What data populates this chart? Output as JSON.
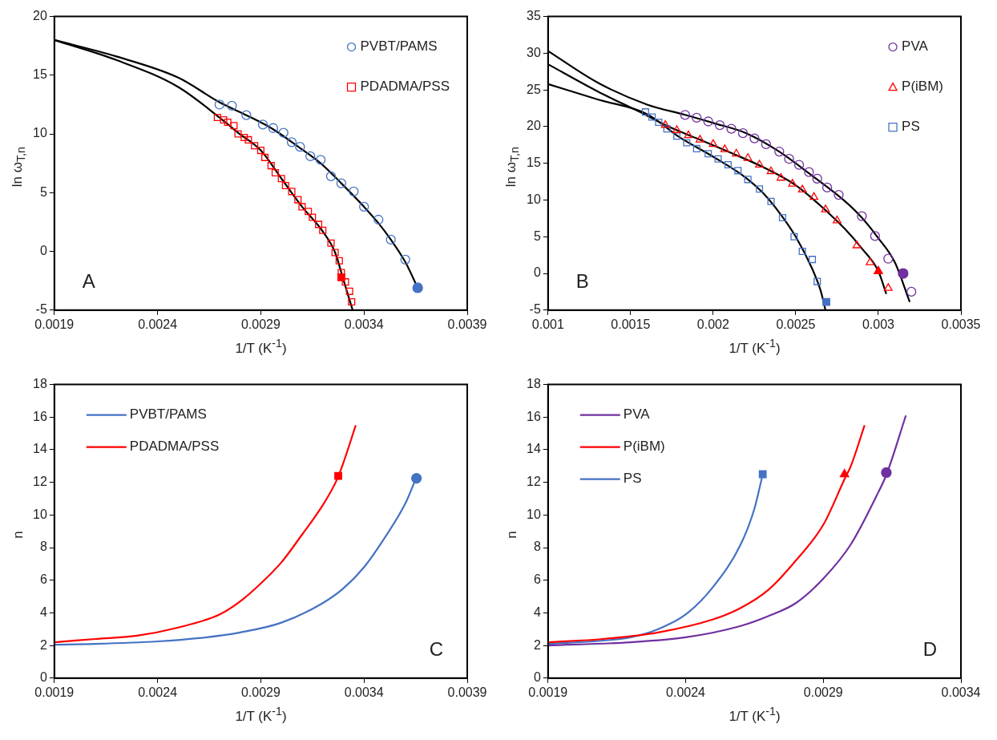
{
  "chart_data": [
    {
      "type": "scatter",
      "xlabel": "1/T (K$^{-1}$)",
      "ylabel": "ln ω$_{T,n}$",
      "xlim": [
        0.0019,
        0.0039
      ],
      "xticks": [
        0.0019,
        0.0024,
        0.0029,
        0.0034,
        0.0039
      ],
      "ylim": [
        -5,
        20
      ],
      "yticks": [
        -5,
        0,
        5,
        10,
        15,
        20
      ],
      "grid": false,
      "legend": "top right",
      "annotations": [
        "A"
      ],
      "series": [
        {
          "type": "line",
          "color": "#000000",
          "marker": "none",
          "x": [
            0.0019,
            0.0022,
            0.0025,
            0.0027,
            0.00283,
            0.00296,
            0.00309,
            0.00319,
            0.00329,
            0.0034,
            0.00347,
            0.00353,
            0.0036,
            0.00366
          ],
          "values": [
            18,
            16.6,
            14.8,
            12.7,
            11.6,
            10.4,
            8.8,
            7.5,
            5.8,
            3.8,
            2.4,
            1.0,
            -0.9,
            -3.1
          ]
        },
        {
          "type": "line",
          "color": "#000000",
          "marker": "none",
          "x": [
            0.0019,
            0.0022,
            0.0025,
            0.0027,
            0.00279,
            0.0029,
            0.003,
            0.0031,
            0.0032,
            0.00326,
            0.0033,
            0.003345
          ],
          "values": [
            18,
            16.3,
            14.0,
            11.4,
            10.1,
            8.6,
            6.2,
            3.8,
            1.7,
            -0.1,
            -2.4,
            -5
          ]
        },
        {
          "name": "PVBT/PAMS",
          "color": "#4472c4",
          "marker": "circle",
          "x": [
            0.0027,
            0.00276,
            0.00283,
            0.00291,
            0.00296,
            0.00301,
            0.00305,
            0.00309,
            0.00314,
            0.00319,
            0.00324,
            0.00329,
            0.00335,
            0.0034,
            0.00347,
            0.00353,
            0.0036
          ],
          "values": [
            12.5,
            12.4,
            11.6,
            10.8,
            10.5,
            10.1,
            9.3,
            8.9,
            8.1,
            7.8,
            6.4,
            5.8,
            5.1,
            3.8,
            2.7,
            1.0,
            -0.7
          ]
        },
        {
          "name": "PDADMA/PSS",
          "color": "#ff0000",
          "marker": "square",
          "x": [
            0.00269,
            0.00272,
            0.00274,
            0.00277,
            0.00279,
            0.00282,
            0.00284,
            0.00287,
            0.0029,
            0.00292,
            0.00295,
            0.00297,
            0.003,
            0.00302,
            0.00305,
            0.00308,
            0.0031,
            0.00313,
            0.00315,
            0.00318,
            0.0032,
            0.00324,
            0.00326,
            0.00328,
            0.00329,
            0.00331,
            0.00333,
            0.00334
          ],
          "values": [
            11.4,
            11.2,
            11.0,
            10.7,
            10.0,
            9.7,
            9.5,
            9.0,
            8.6,
            8.0,
            7.3,
            6.7,
            6.2,
            5.6,
            5.1,
            4.4,
            3.8,
            3.4,
            2.9,
            2.3,
            1.8,
            0.7,
            -0.1,
            -0.8,
            -1.8,
            -2.6,
            -3.4,
            -4.3
          ]
        },
        {
          "color": "#4472c4",
          "marker": "circle",
          "x": [
            0.00366
          ],
          "values": [
            -3.1
          ]
        },
        {
          "color": "#ff0000",
          "marker": "square",
          "x": [
            0.00329
          ],
          "values": [
            -2.2
          ]
        }
      ]
    },
    {
      "type": "scatter",
      "xlabel": "1/T (K$^{-1}$)",
      "ylabel": "ln ω$_{T,n}$",
      "xlim": [
        0.001,
        0.0035
      ],
      "xticks": [
        0.001,
        0.0015,
        0.002,
        0.0025,
        0.003,
        0.0035
      ],
      "ylim": [
        -5,
        35
      ],
      "yticks": [
        -5,
        0,
        5,
        10,
        15,
        20,
        25,
        30,
        35
      ],
      "grid": false,
      "legend": "top right",
      "annotations": [
        "B"
      ],
      "series": [
        {
          "type": "line",
          "color": "#000000",
          "marker": "none",
          "x": [
            0.001,
            0.0013,
            0.0016,
            0.00183,
            0.002,
            0.0022,
            0.0024,
            0.0026,
            0.0028,
            0.0029,
            0.003,
            0.0031,
            0.00319
          ],
          "values": [
            30.3,
            26,
            23,
            21.6,
            20.5,
            19.1,
            16.6,
            13.3,
            9.8,
            7.6,
            4.8,
            1.5,
            -3.9
          ]
        },
        {
          "type": "line",
          "color": "#000000",
          "marker": "none",
          "x": [
            0.001,
            0.0013,
            0.0016,
            0.00171,
            0.0019,
            0.0021,
            0.0023,
            0.0025,
            0.0027,
            0.0028,
            0.0029,
            0.003,
            0.003048
          ],
          "values": [
            28.5,
            24.8,
            21.5,
            20.2,
            18.4,
            16.5,
            14.5,
            12.0,
            8.2,
            6.0,
            3.4,
            0.3,
            -2.8
          ]
        },
        {
          "type": "line",
          "color": "#000000",
          "marker": "none",
          "x": [
            0.001,
            0.0013,
            0.0016,
            0.0018,
            0.002,
            0.0022,
            0.0023,
            0.0024,
            0.0025,
            0.0026,
            0.00265,
            0.00268
          ],
          "values": [
            25.8,
            23.7,
            21.7,
            18.5,
            15.9,
            13.0,
            11.0,
            8.3,
            5.0,
            0.6,
            -2.3,
            -5
          ]
        },
        {
          "name": "PVA",
          "color": "#7030a0",
          "marker": "circle",
          "x": [
            0.00183,
            0.0019,
            0.00197,
            0.00204,
            0.00211,
            0.00218,
            0.00225,
            0.00232,
            0.0024,
            0.00246,
            0.00252,
            0.00258,
            0.00263,
            0.00269,
            0.00276,
            0.0029,
            0.00298,
            0.00306,
            0.0032
          ],
          "values": [
            21.6,
            21.2,
            20.7,
            20.2,
            19.7,
            19.1,
            18.4,
            17.6,
            16.6,
            15.6,
            14.8,
            13.8,
            12.9,
            11.7,
            10.7,
            7.8,
            5.1,
            2.0,
            -2.5
          ]
        },
        {
          "name": "P(iBM)",
          "color": "#ff0000",
          "marker": "triangle",
          "x": [
            0.00171,
            0.00178,
            0.00185,
            0.00192,
            0.002,
            0.00207,
            0.00214,
            0.00221,
            0.00228,
            0.00235,
            0.00241,
            0.00248,
            0.00254,
            0.00261,
            0.00268,
            0.00275,
            0.00287,
            0.00295,
            0.00306
          ],
          "values": [
            20.2,
            19.5,
            18.8,
            18.2,
            17.6,
            16.9,
            16.3,
            15.7,
            14.8,
            13.9,
            13.0,
            12.2,
            11.4,
            10.4,
            8.7,
            7.2,
            3.8,
            1.5,
            -2.0
          ]
        },
        {
          "name": "PS",
          "color": "#4472c4",
          "marker": "square",
          "x": [
            0.00159,
            0.00163,
            0.00167,
            0.00172,
            0.00178,
            0.00184,
            0.0019,
            0.00197,
            0.00203,
            0.00209,
            0.00215,
            0.00221,
            0.00228,
            0.00235,
            0.00242,
            0.00249,
            0.00254,
            0.0026,
            0.00263
          ],
          "values": [
            22.0,
            21.3,
            20.6,
            19.7,
            18.7,
            17.8,
            17.0,
            16.3,
            15.6,
            14.8,
            14.0,
            12.8,
            11.5,
            9.8,
            7.6,
            5.0,
            3.0,
            1.9,
            -1.1
          ]
        },
        {
          "color": "#7030a0",
          "marker": "circle",
          "x": [
            0.00315
          ],
          "values": [
            0
          ]
        },
        {
          "color": "#ff0000",
          "marker": "triangle",
          "x": [
            0.003
          ],
          "values": [
            0.3
          ]
        },
        {
          "color": "#4472c4",
          "marker": "square",
          "x": [
            0.002685
          ],
          "values": [
            -3.9
          ]
        }
      ]
    },
    {
      "type": "line",
      "xlabel": "1/T (K$^{-1}$)",
      "ylabel": "n",
      "xlim": [
        0.0019,
        0.0039
      ],
      "xticks": [
        0.0019,
        0.0024,
        0.0029,
        0.0034,
        0.0039
      ],
      "ylim": [
        0,
        18
      ],
      "yticks": [
        0,
        2,
        4,
        6,
        8,
        10,
        12,
        14,
        16,
        18
      ],
      "grid": false,
      "legend": "top left",
      "annotations": [
        "C"
      ],
      "series": [
        {
          "name": "PVBT/PAMS",
          "color": "#4472c4",
          "marker": "none",
          "x": [
            0.0019,
            0.0021,
            0.0024,
            0.0026,
            0.0028,
            0.003,
            0.0032,
            0.0033,
            0.0034,
            0.0035,
            0.0036,
            0.00365
          ],
          "values": [
            2.05,
            2.1,
            2.25,
            2.45,
            2.8,
            3.4,
            4.6,
            5.5,
            6.8,
            8.6,
            10.7,
            12.2
          ]
        },
        {
          "name": "PDADMA/PSS",
          "color": "#ff0000",
          "marker": "none",
          "x": [
            0.0019,
            0.0021,
            0.0023,
            0.0025,
            0.0027,
            0.0028,
            0.0029,
            0.003,
            0.0031,
            0.0032,
            0.00327,
            0.0033,
            0.00336
          ],
          "values": [
            2.2,
            2.4,
            2.6,
            3.1,
            3.9,
            4.7,
            5.8,
            7.1,
            8.8,
            10.6,
            12.2,
            13.2,
            15.5
          ]
        },
        {
          "type": "scatter",
          "color": "#4472c4",
          "marker": "circle",
          "x": [
            0.003654
          ],
          "values": [
            12.25
          ]
        },
        {
          "type": "scatter",
          "color": "#ff0000",
          "marker": "square",
          "x": [
            0.003275
          ],
          "values": [
            12.4
          ]
        }
      ]
    },
    {
      "type": "line",
      "xlabel": "1/T (K$^{-1}$)",
      "ylabel": "n",
      "xlim": [
        0.0019,
        0.0034
      ],
      "xticks": [
        0.0019,
        0.0024,
        0.0029,
        0.0034
      ],
      "ylim": [
        0,
        18
      ],
      "yticks": [
        0,
        2,
        4,
        6,
        8,
        10,
        12,
        14,
        16,
        18
      ],
      "grid": false,
      "legend": "top left",
      "annotations": [
        "D"
      ],
      "series": [
        {
          "name": "PVA",
          "color": "#7030a0",
          "marker": "none",
          "x": [
            0.0019,
            0.0022,
            0.0024,
            0.0026,
            0.0027,
            0.0028,
            0.0029,
            0.003,
            0.0031,
            0.00313,
            0.0032
          ],
          "values": [
            2.0,
            2.2,
            2.5,
            3.2,
            3.8,
            4.6,
            6.1,
            8.2,
            11.4,
            12.5,
            16.1
          ]
        },
        {
          "name": "P(iBM)",
          "color": "#ff0000",
          "marker": "none",
          "x": [
            0.0019,
            0.0021,
            0.0023,
            0.0025,
            0.0026,
            0.0027,
            0.0028,
            0.0029,
            0.00298,
            0.003,
            0.00305
          ],
          "values": [
            2.2,
            2.4,
            2.8,
            3.6,
            4.3,
            5.4,
            7.2,
            9.4,
            12.3,
            13.0,
            15.5
          ]
        },
        {
          "name": "PS",
          "color": "#4472c4",
          "marker": "none",
          "x": [
            0.0019,
            0.0021,
            0.0022,
            0.0023,
            0.0024,
            0.0025,
            0.0026,
            0.00265,
            0.00268
          ],
          "values": [
            2.1,
            2.3,
            2.5,
            3.0,
            3.9,
            5.6,
            8.2,
            10.4,
            12.5
          ]
        },
        {
          "type": "scatter",
          "color": "#7030a0",
          "marker": "circle",
          "x": [
            0.003129
          ],
          "values": [
            12.6
          ]
        },
        {
          "type": "scatter",
          "color": "#ff0000",
          "marker": "triangle",
          "x": [
            0.002977
          ],
          "values": [
            12.5
          ]
        },
        {
          "type": "scatter",
          "color": "#4472c4",
          "marker": "square",
          "x": [
            0.00268
          ],
          "values": [
            12.5
          ]
        }
      ]
    }
  ]
}
